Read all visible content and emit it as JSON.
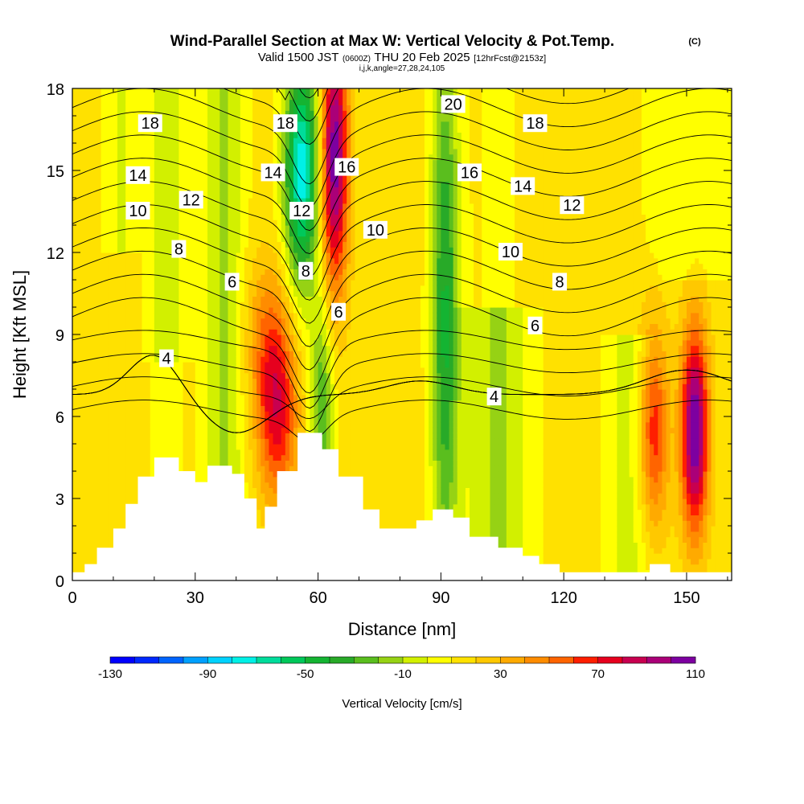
{
  "header": {
    "title": "Wind-Parallel Section at Max W: Vertical Velocity & Pot.Temp.",
    "title_mark": "(C)",
    "valid_prefix": "Valid 1500 JST",
    "valid_utc": "(0600Z)",
    "valid_date": "THU 20 Feb 2025",
    "forecast": "[12hrFcst@2153z]",
    "indices": "i,j,k,angle=27,28,24,105"
  },
  "chart_data": {
    "type": "heatmap",
    "xlabel": "Distance [nm]",
    "ylabel": "Height [Kft MSL]",
    "xlim": [
      0,
      161
    ],
    "ylim": [
      0,
      18
    ],
    "x_ticks": [
      "0",
      "30",
      "60",
      "90",
      "120",
      "150"
    ],
    "y_ticks": [
      "0",
      "3",
      "6",
      "9",
      "12",
      "15",
      "18"
    ],
    "grid": false,
    "shaded_field": "Vertical Velocity [cm/s]",
    "contoured_field": "Potential temperature (labelled contours)",
    "contour_levels": [
      4,
      6,
      8,
      10,
      12,
      14,
      16,
      18,
      20
    ],
    "contour_labels": [
      {
        "text": "18",
        "x": 19,
        "y": 16.7
      },
      {
        "text": "18",
        "x": 52,
        "y": 16.7
      },
      {
        "text": "20",
        "x": 93,
        "y": 17.4
      },
      {
        "text": "18",
        "x": 113,
        "y": 16.7
      },
      {
        "text": "14",
        "x": 16,
        "y": 14.8
      },
      {
        "text": "14",
        "x": 49,
        "y": 14.9
      },
      {
        "text": "16",
        "x": 67,
        "y": 15.1
      },
      {
        "text": "16",
        "x": 97,
        "y": 14.9
      },
      {
        "text": "14",
        "x": 110,
        "y": 14.4
      },
      {
        "text": "12",
        "x": 29,
        "y": 13.9
      },
      {
        "text": "12",
        "x": 56,
        "y": 13.5
      },
      {
        "text": "12",
        "x": 122,
        "y": 13.7
      },
      {
        "text": "10",
        "x": 16,
        "y": 13.5
      },
      {
        "text": "10",
        "x": 74,
        "y": 12.8
      },
      {
        "text": "10",
        "x": 107,
        "y": 12.0
      },
      {
        "text": "8",
        "x": 26,
        "y": 12.1
      },
      {
        "text": "8",
        "x": 57,
        "y": 11.3
      },
      {
        "text": "8",
        "x": 119,
        "y": 10.9
      },
      {
        "text": "6",
        "x": 39,
        "y": 10.9
      },
      {
        "text": "6",
        "x": 65,
        "y": 9.8
      },
      {
        "text": "6",
        "x": 113,
        "y": 9.3
      },
      {
        "text": "4",
        "x": 23,
        "y": 8.1
      },
      {
        "text": "4",
        "x": 103,
        "y": 6.7
      }
    ],
    "terrain_profile_kft": [
      [
        0,
        0.3
      ],
      [
        3,
        0.6
      ],
      [
        6,
        1.2
      ],
      [
        10,
        1.9
      ],
      [
        13,
        2.8
      ],
      [
        16,
        3.8
      ],
      [
        20,
        4.5
      ],
      [
        26,
        4.0
      ],
      [
        30,
        3.6
      ],
      [
        33,
        4.2
      ],
      [
        39,
        3.9
      ],
      [
        42,
        3.0
      ],
      [
        45,
        1.9
      ],
      [
        47,
        2.7
      ],
      [
        50,
        4.0
      ],
      [
        55,
        5.4
      ],
      [
        61,
        4.8
      ],
      [
        65,
        3.8
      ],
      [
        71,
        2.6
      ],
      [
        75,
        1.9
      ],
      [
        84,
        2.2
      ],
      [
        88,
        2.6
      ],
      [
        93,
        2.3
      ],
      [
        97,
        1.6
      ],
      [
        104,
        1.2
      ],
      [
        110,
        0.9
      ],
      [
        114,
        0.6
      ],
      [
        119,
        0.3
      ],
      [
        135,
        0.3
      ],
      [
        141,
        0.6
      ],
      [
        146,
        0.3
      ],
      [
        161,
        0.3
      ]
    ],
    "colorbar": {
      "label": "Vertical Velocity [cm/s]",
      "range": [
        -130,
        110
      ],
      "tick_labels": [
        "-130",
        "-90",
        "-50",
        "-10",
        "30",
        "70",
        "110"
      ],
      "colors": [
        "#0000ff",
        "#0028ff",
        "#0064ff",
        "#00a0ff",
        "#00d2ff",
        "#00f0e6",
        "#00dc9b",
        "#00c85a",
        "#14b432",
        "#28aa28",
        "#5abe1e",
        "#96d214",
        "#d2f000",
        "#ffff00",
        "#ffe100",
        "#ffc800",
        "#ffaa00",
        "#ff8c00",
        "#ff6400",
        "#ff1e00",
        "#e6001e",
        "#c80050",
        "#aa0078",
        "#7d00a0"
      ]
    }
  }
}
